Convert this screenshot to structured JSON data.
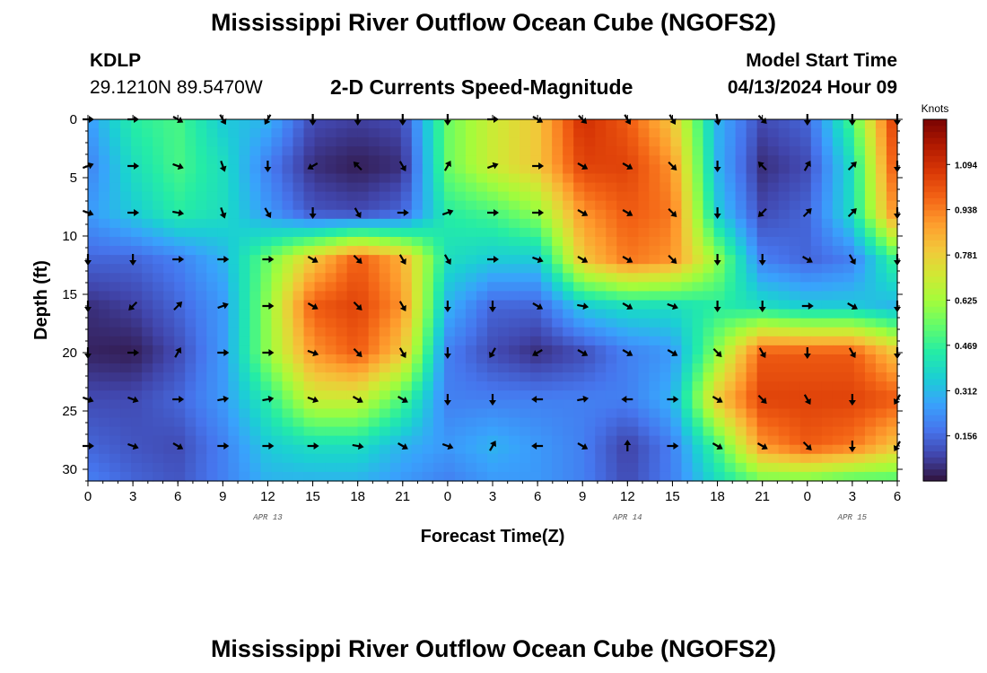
{
  "page": {
    "title": "Mississippi River Outflow Ocean Cube (NGOFS2)",
    "title_repeat": "Mississippi River Outflow Ocean Cube (NGOFS2)",
    "station_id": "KDLP",
    "station_coords": "29.1210N  89.5470W",
    "subtitle": "2-D Currents Speed-Magnitude",
    "model_start_label": "Model Start Time",
    "model_start_value": "04/13/2024 Hour 09"
  },
  "chart_data": {
    "type": "heatmap",
    "title": "2-D Currents Speed-Magnitude",
    "xlabel": "Forecast Time(Z)",
    "ylabel": "Depth (ft)",
    "colorbar_unit": "Knots",
    "x_start": "04/13/2024 00Z",
    "x_range_hours": [
      0,
      54
    ],
    "x_ticks": [
      0,
      3,
      6,
      9,
      12,
      15,
      18,
      21,
      24,
      27,
      30,
      33,
      36,
      39,
      42,
      45,
      48,
      51,
      54
    ],
    "x_tick_labels": [
      "0",
      "3",
      "6",
      "9",
      "12",
      "15",
      "18",
      "21",
      "0",
      "3",
      "6",
      "9",
      "12",
      "15",
      "18",
      "21",
      "0",
      "3",
      "6"
    ],
    "date_labels": [
      {
        "hour": 12,
        "text": "APR 13"
      },
      {
        "hour": 36,
        "text": "APR 14"
      },
      {
        "hour": 51,
        "text": "APR 15"
      }
    ],
    "y_range_ft": [
      0,
      31
    ],
    "y_ticks": [
      0,
      5,
      10,
      15,
      20,
      25,
      30
    ],
    "y_inverted": true,
    "colorbar_range": [
      0,
      1.25
    ],
    "colorbar_ticks": [
      0.156,
      0.312,
      0.469,
      0.625,
      0.781,
      0.938,
      1.094
    ],
    "colorbar_tick_labels": [
      "0.156",
      "0.312",
      "0.469",
      "0.625",
      "0.781",
      "0.938",
      "1.094"
    ],
    "colormap": [
      "#30123b",
      "#4145ab",
      "#4675ed",
      "#39a2fc",
      "#1bcfd4",
      "#24eca6",
      "#61fc6c",
      "#a4fc3b",
      "#d1e834",
      "#f3c63a",
      "#fe9b2d",
      "#f36315",
      "#d93806",
      "#b11901",
      "#7a0402"
    ],
    "speed_grid": {
      "hours": [
        0,
        3,
        6,
        9,
        12,
        15,
        18,
        21,
        24,
        27,
        30,
        33,
        36,
        39,
        42,
        45,
        48,
        51,
        54
      ],
      "depths_ft": [
        0,
        4,
        8,
        12,
        16,
        20,
        24,
        28,
        31
      ],
      "values_knots": [
        [
          0.25,
          0.45,
          0.5,
          0.35,
          0.3,
          0.1,
          0.08,
          0.1,
          0.55,
          0.7,
          0.8,
          1.1,
          1.0,
          0.8,
          0.3,
          0.1,
          0.15,
          0.5,
          1.1
        ],
        [
          0.2,
          0.4,
          0.5,
          0.4,
          0.2,
          0.05,
          0.02,
          0.05,
          0.55,
          0.7,
          0.8,
          1.05,
          1.05,
          0.9,
          0.3,
          0.05,
          0.1,
          0.4,
          1.05
        ],
        [
          0.25,
          0.35,
          0.45,
          0.4,
          0.25,
          0.12,
          0.1,
          0.15,
          0.45,
          0.5,
          0.6,
          0.9,
          1.0,
          0.95,
          0.35,
          0.1,
          0.15,
          0.4,
          0.95
        ],
        [
          0.15,
          0.15,
          0.2,
          0.3,
          0.55,
          0.8,
          1.0,
          0.85,
          0.4,
          0.35,
          0.35,
          0.8,
          0.95,
          0.9,
          0.6,
          0.2,
          0.15,
          0.2,
          0.5
        ],
        [
          0.05,
          0.08,
          0.15,
          0.25,
          0.6,
          1.0,
          1.05,
          0.9,
          0.3,
          0.15,
          0.15,
          0.35,
          0.4,
          0.4,
          0.45,
          0.4,
          0.35,
          0.35,
          0.3
        ],
        [
          0.03,
          0.02,
          0.1,
          0.25,
          0.6,
          0.9,
          1.0,
          0.8,
          0.2,
          0.1,
          0.05,
          0.1,
          0.2,
          0.25,
          0.6,
          1.0,
          1.0,
          1.0,
          0.8
        ],
        [
          0.1,
          0.1,
          0.15,
          0.25,
          0.45,
          0.7,
          0.7,
          0.5,
          0.2,
          0.2,
          0.2,
          0.2,
          0.2,
          0.3,
          0.8,
          1.05,
          1.05,
          1.05,
          1.0
        ],
        [
          0.15,
          0.12,
          0.1,
          0.2,
          0.35,
          0.4,
          0.4,
          0.3,
          0.25,
          0.3,
          0.25,
          0.2,
          0.08,
          0.2,
          0.5,
          0.9,
          1.0,
          0.95,
          0.8
        ],
        [
          0.2,
          0.15,
          0.12,
          0.2,
          0.3,
          0.3,
          0.3,
          0.25,
          0.2,
          0.25,
          0.25,
          0.2,
          0.1,
          0.2,
          0.4,
          0.55,
          0.55,
          0.5,
          0.5
        ]
      ]
    },
    "direction_arrows": {
      "hours": [
        0,
        3,
        6,
        9,
        12,
        15,
        18,
        21,
        24,
        27,
        30,
        33,
        36,
        39,
        42,
        45,
        48,
        51,
        54
      ],
      "depths_ft": [
        0,
        4,
        8,
        12,
        16,
        20,
        24,
        28
      ],
      "angles_deg_cw_from_east": [
        [
          0,
          0,
          30,
          60,
          120,
          90,
          90,
          90,
          90,
          0,
          30,
          45,
          60,
          60,
          80,
          45,
          90,
          90,
          90
        ],
        [
          -20,
          0,
          20,
          70,
          90,
          150,
          -135,
          60,
          -60,
          -20,
          0,
          30,
          30,
          45,
          90,
          -135,
          -60,
          -45,
          90
        ],
        [
          20,
          0,
          10,
          70,
          60,
          90,
          60,
          0,
          -20,
          0,
          0,
          30,
          30,
          45,
          90,
          135,
          -45,
          -45,
          90
        ],
        [
          90,
          90,
          0,
          0,
          0,
          30,
          45,
          60,
          60,
          0,
          20,
          30,
          30,
          45,
          90,
          90,
          30,
          60,
          90
        ],
        [
          90,
          135,
          -45,
          -20,
          0,
          30,
          45,
          60,
          90,
          90,
          30,
          10,
          30,
          20,
          90,
          90,
          0,
          30,
          90
        ],
        [
          90,
          0,
          -60,
          0,
          0,
          20,
          45,
          60,
          90,
          120,
          150,
          30,
          30,
          30,
          45,
          60,
          90,
          60,
          90
        ],
        [
          20,
          20,
          0,
          -10,
          -10,
          20,
          30,
          30,
          90,
          90,
          180,
          -10,
          180,
          0,
          30,
          45,
          60,
          90,
          120
        ],
        [
          0,
          20,
          30,
          0,
          0,
          0,
          10,
          30,
          20,
          -60,
          180,
          30,
          -90,
          0,
          30,
          30,
          45,
          90,
          120
        ]
      ]
    }
  }
}
